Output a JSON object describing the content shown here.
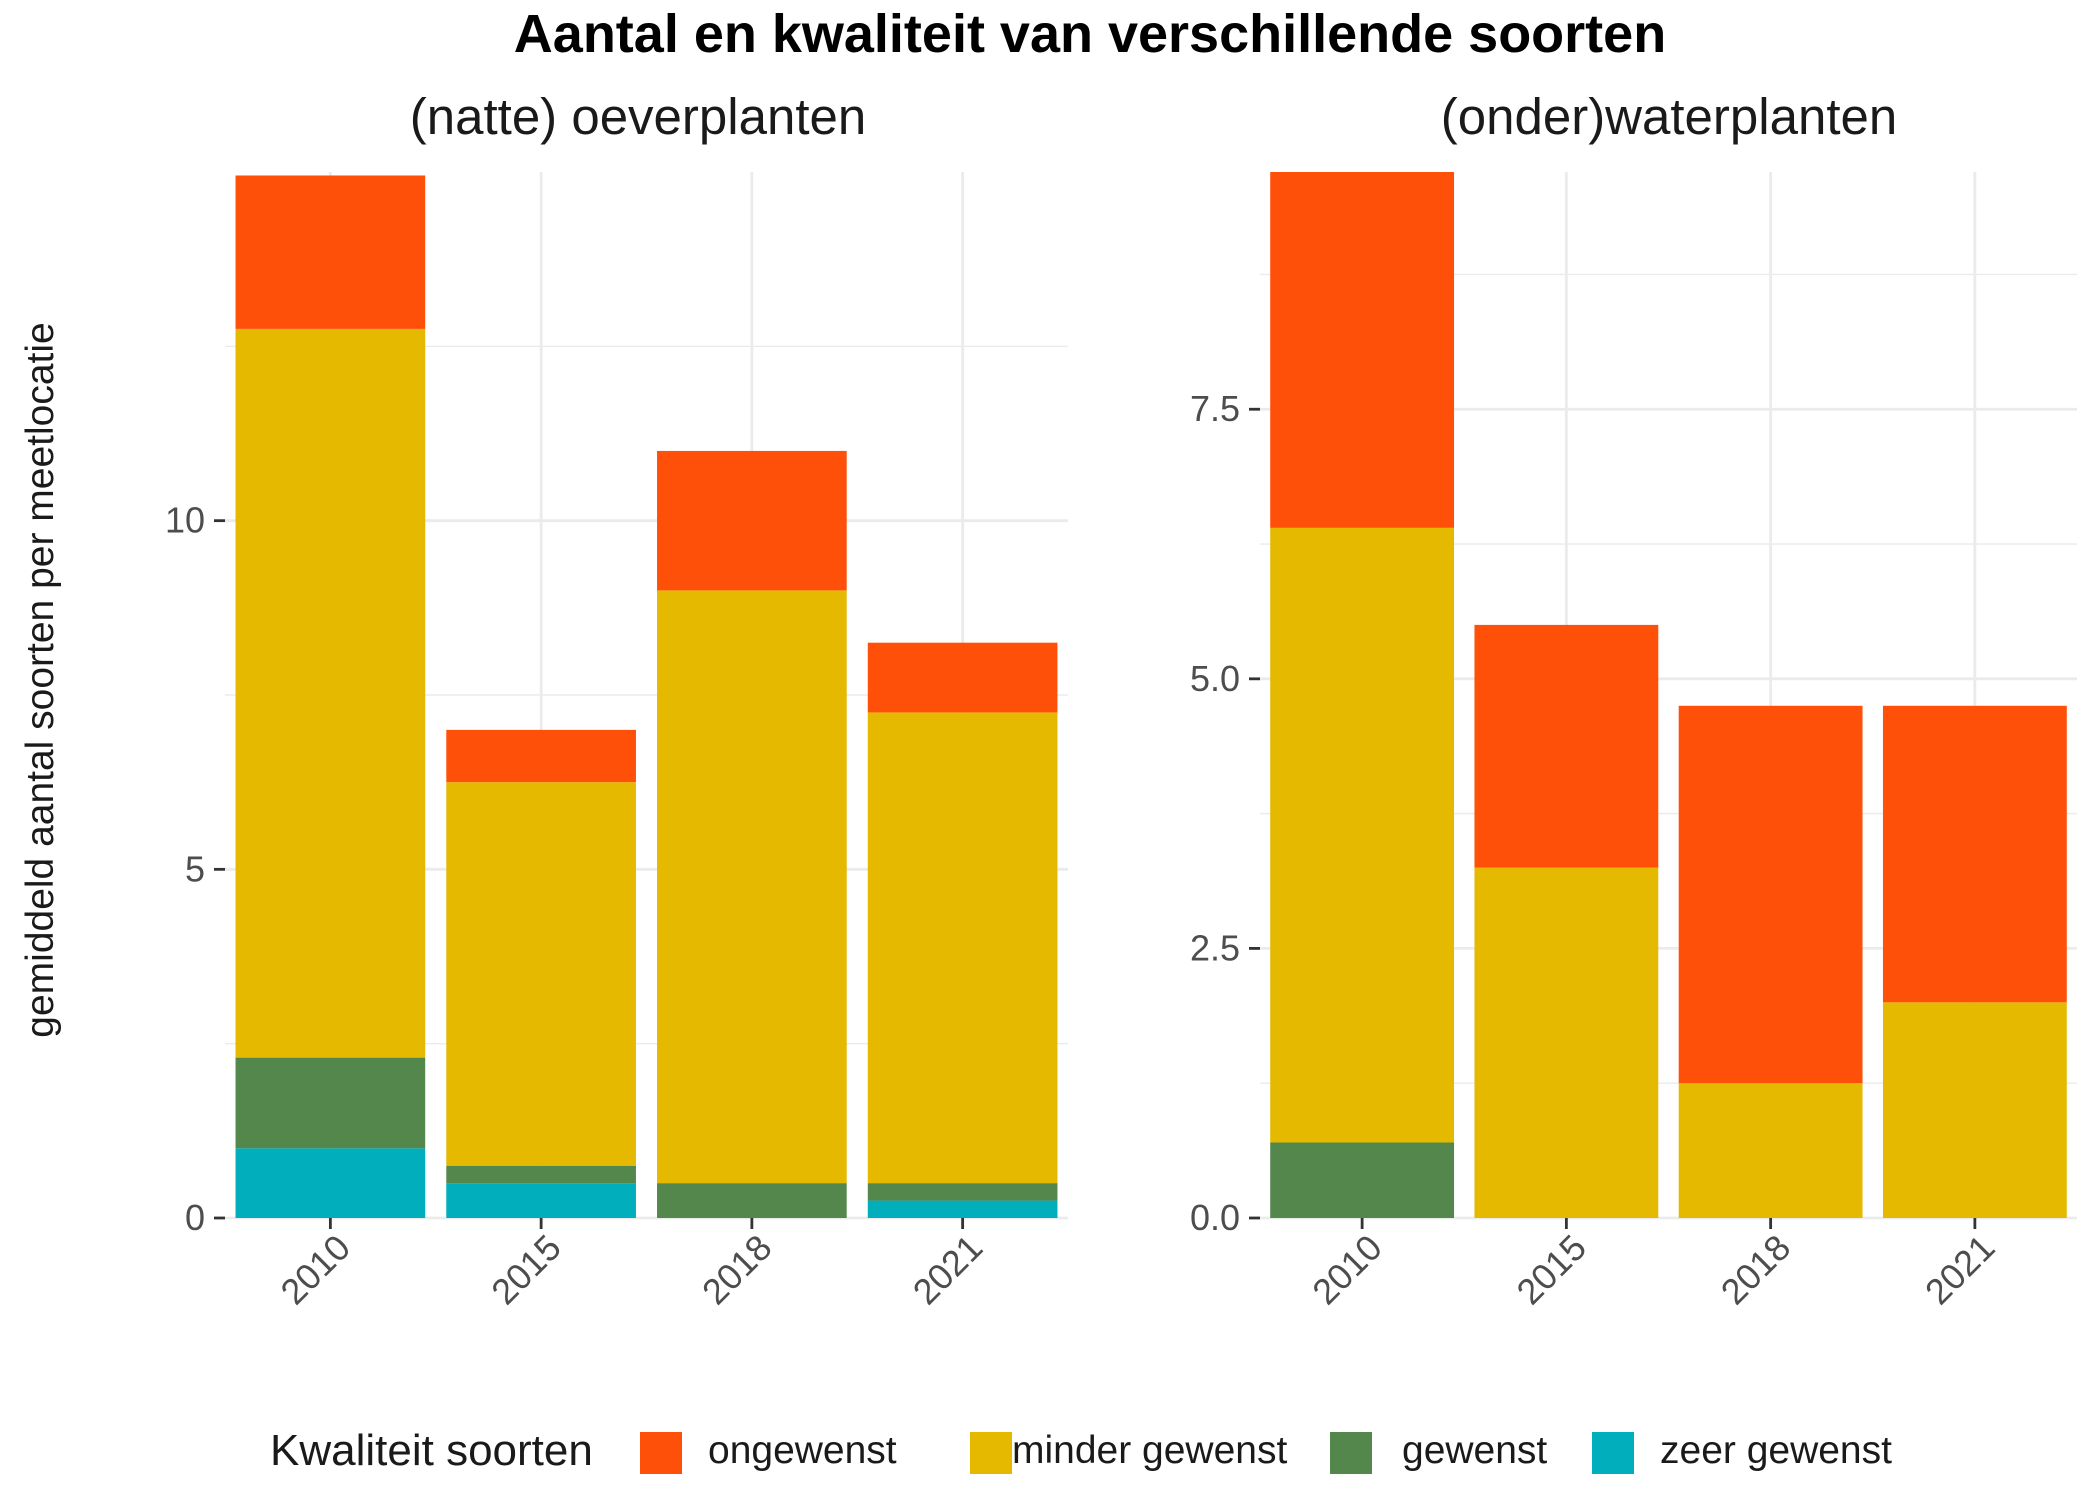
{
  "title": "Aantal en kwaliteit van verschillende soorten",
  "y_axis_title": "gemiddeld aantal soorten per meetlocatie",
  "legend": {
    "title": "Kwaliteit soorten",
    "position": "bottom",
    "items": [
      {
        "label": "ongewenst",
        "color": "#FF5009"
      },
      {
        "label": "minder gewenst",
        "color": "#E5B900"
      },
      {
        "label": "gewenst",
        "color": "#53874C"
      },
      {
        "label": "zeer gewenst",
        "color": "#00AFBB"
      }
    ]
  },
  "chart_data": [
    {
      "type": "bar",
      "stacked": true,
      "title": "(natte) oeverplanten",
      "categories": [
        "2010",
        "2015",
        "2018",
        "2021"
      ],
      "ylabel": "gemiddeld aantal soorten per meetlocatie",
      "ylim": [
        0,
        15
      ],
      "y_ticks": [
        0,
        5,
        10
      ],
      "y_tick_labels": [
        "0",
        "5",
        "10"
      ],
      "grid": true,
      "series": [
        {
          "name": "zeer gewenst",
          "color": "#00AFBB",
          "values": [
            1,
            0.5,
            0,
            0.25
          ]
        },
        {
          "name": "gewenst",
          "color": "#53874C",
          "values": [
            1.3,
            0.25,
            0.5,
            0.25
          ]
        },
        {
          "name": "minder gewenst",
          "color": "#E5B900",
          "values": [
            10.45,
            5.5,
            8.5,
            6.75
          ]
        },
        {
          "name": "ongewenst",
          "color": "#FF5009",
          "values": [
            2.2,
            0.75,
            2,
            1
          ]
        }
      ]
    },
    {
      "type": "bar",
      "stacked": true,
      "title": "(onder)waterplanten",
      "categories": [
        "2010",
        "2015",
        "2018",
        "2021"
      ],
      "ylim": [
        0,
        9.7
      ],
      "y_ticks": [
        0,
        2.5,
        5,
        7.5
      ],
      "y_tick_labels": [
        "0.0",
        "2.5",
        "5.0",
        "7.5"
      ],
      "grid": true,
      "series": [
        {
          "name": "zeer gewenst",
          "color": "#00AFBB",
          "values": [
            0,
            0,
            0,
            0
          ]
        },
        {
          "name": "gewenst",
          "color": "#53874C",
          "values": [
            0.7,
            0,
            0,
            0
          ]
        },
        {
          "name": "minder gewenst",
          "color": "#E5B900",
          "values": [
            5.7,
            3.25,
            1.25,
            2
          ]
        },
        {
          "name": "ongewenst",
          "color": "#FF5009",
          "values": [
            3.3,
            2.25,
            3.5,
            2.75
          ]
        }
      ]
    }
  ]
}
